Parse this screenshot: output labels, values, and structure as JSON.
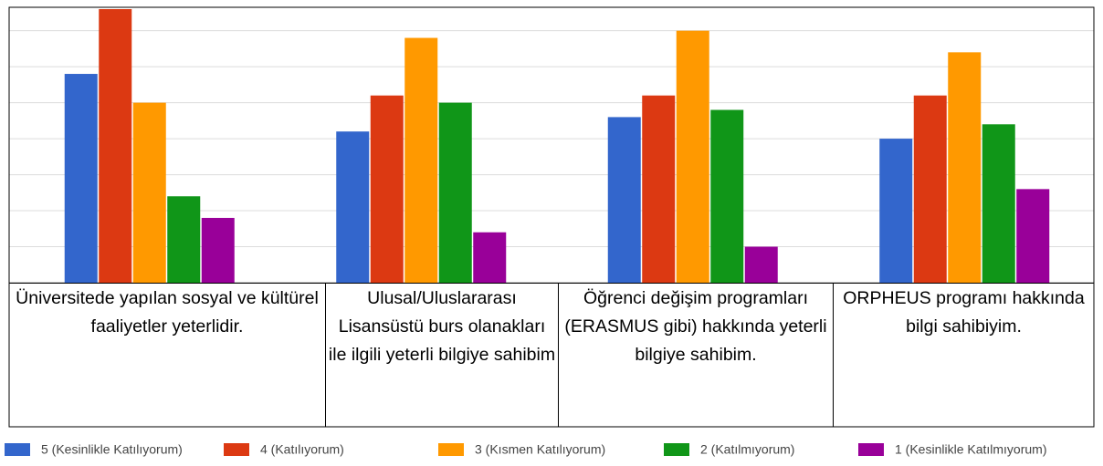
{
  "chart_data": {
    "type": "bar",
    "categories": [
      "Üniversitede  yapılan sosyal ve kültürel faaliyetler yeterlidir.",
      "Ulusal/Uluslararası Lisansüstü burs olanakları ile ilgili yeterli bilgiye sahibim",
      "Öğrenci değişim programları (ERASMUS gibi) hakkında yeterli bilgiye sahibim.",
      "ORPHEUS programı hakkında bilgi sahibiyim."
    ],
    "series": [
      {
        "name": "5 (Kesinlikle Katılıyorum)",
        "color": "#3366cc",
        "values": [
          5.8,
          4.2,
          4.6,
          4.0
        ]
      },
      {
        "name": "4 (Katılıyorum)",
        "color": "#dc3912",
        "values": [
          7.6,
          5.2,
          5.2,
          5.2
        ]
      },
      {
        "name": "3 (Kısmen Katılıyorum)",
        "color": "#ff9900",
        "values": [
          5.0,
          6.8,
          7.0,
          6.4
        ]
      },
      {
        "name": "2 (Katılmıyorum)",
        "color": "#109618",
        "values": [
          2.4,
          5.0,
          4.8,
          4.4
        ]
      },
      {
        "name": "1 (Kesinlikle Katılmıyorum)",
        "color": "#990099",
        "values": [
          1.8,
          1.4,
          1.0,
          2.6
        ]
      }
    ],
    "ylim": [
      0,
      7.65
    ],
    "yticks": [
      0,
      1,
      2,
      3,
      4,
      5,
      6,
      7
    ],
    "grid": true,
    "legend": "bottom"
  }
}
